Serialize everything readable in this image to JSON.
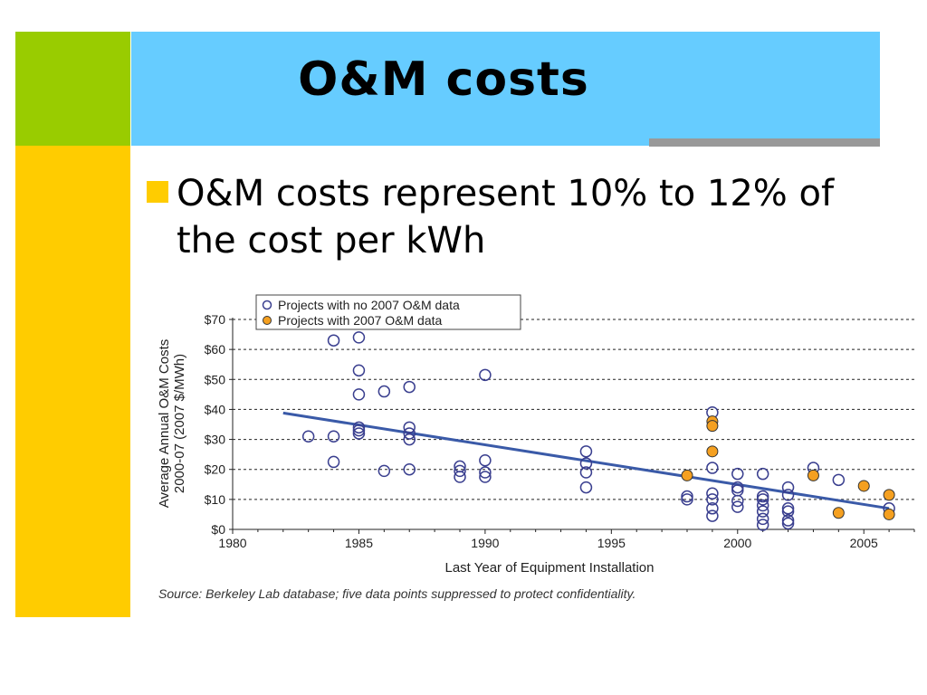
{
  "slide": {
    "title": "O&M costs",
    "bullet": "O&M costs represent 10% to 12% of the cost per kWh",
    "source": "Source: Berkeley Lab database;  five data points suppressed to protect confidentiality.",
    "colors": {
      "green": "#99cc00",
      "yellow": "#ffcc00",
      "blue": "#66ccff",
      "gray": "#999999"
    }
  },
  "chart_data": {
    "type": "scatter",
    "xlabel": "Last Year of Equipment Installation",
    "ylabel_line1": "Average Annual O&M Costs",
    "ylabel_line2": "2000-07 (2007 $/MWh)",
    "xlim": [
      1980,
      2007
    ],
    "ylim": [
      0,
      70
    ],
    "xticks": [
      1980,
      1985,
      1990,
      1995,
      2000,
      2005
    ],
    "yticks": [
      0,
      10,
      20,
      30,
      40,
      50,
      60,
      70
    ],
    "ytick_labels": [
      "$0",
      "$10",
      "$20",
      "$30",
      "$40",
      "$50",
      "$60",
      "$70"
    ],
    "grid": "horizontal-dashed",
    "legend_position": "top-left",
    "series": [
      {
        "name": "Projects with no 2007 O&M data",
        "marker": "open-circle",
        "color": "#3a3f8f",
        "points": [
          [
            1983,
            31
          ],
          [
            1984,
            63
          ],
          [
            1984,
            31
          ],
          [
            1984,
            22.5
          ],
          [
            1985,
            64
          ],
          [
            1985,
            53
          ],
          [
            1985,
            45
          ],
          [
            1985,
            34
          ],
          [
            1985,
            33
          ],
          [
            1985,
            32
          ],
          [
            1986,
            46
          ],
          [
            1986,
            19.5
          ],
          [
            1987,
            47.5
          ],
          [
            1987,
            34
          ],
          [
            1987,
            32
          ],
          [
            1987,
            30
          ],
          [
            1987,
            20
          ],
          [
            1989,
            21
          ],
          [
            1989,
            19.5
          ],
          [
            1989,
            17.5
          ],
          [
            1990,
            51.5
          ],
          [
            1990,
            23
          ],
          [
            1990,
            19
          ],
          [
            1990,
            17.5
          ],
          [
            1994,
            26
          ],
          [
            1994,
            22
          ],
          [
            1994,
            19
          ],
          [
            1994,
            14
          ],
          [
            1998,
            11
          ],
          [
            1998,
            10
          ],
          [
            1999,
            39
          ],
          [
            1999,
            20.5
          ],
          [
            1999,
            12
          ],
          [
            1999,
            10
          ],
          [
            1999,
            7
          ],
          [
            1999,
            4.5
          ],
          [
            2000,
            18.5
          ],
          [
            2000,
            14
          ],
          [
            2000,
            13
          ],
          [
            2000,
            9.5
          ],
          [
            2000,
            7.5
          ],
          [
            2001,
            18.5
          ],
          [
            2001,
            11
          ],
          [
            2001,
            10
          ],
          [
            2001,
            8
          ],
          [
            2001,
            6
          ],
          [
            2001,
            3.5
          ],
          [
            2001,
            1.5
          ],
          [
            2002,
            14
          ],
          [
            2002,
            11.5
          ],
          [
            2002,
            7
          ],
          [
            2002,
            6
          ],
          [
            2002,
            3
          ],
          [
            2002,
            2
          ],
          [
            2003,
            20.5
          ],
          [
            2004,
            16.5
          ],
          [
            2006,
            7
          ]
        ]
      },
      {
        "name": "Projects with 2007 O&M data",
        "marker": "filled-circle",
        "color": "#f5a020",
        "points": [
          [
            1998,
            18
          ],
          [
            1999,
            36
          ],
          [
            1999,
            34.5
          ],
          [
            1999,
            26
          ],
          [
            2003,
            18
          ],
          [
            2004,
            5.5
          ],
          [
            2005,
            14.5
          ],
          [
            2006,
            11.5
          ],
          [
            2006,
            5
          ]
        ]
      }
    ],
    "trendline": {
      "color": "#3a5aa8",
      "points": [
        [
          1982,
          38.8
        ],
        [
          2006,
          7
        ]
      ]
    }
  }
}
